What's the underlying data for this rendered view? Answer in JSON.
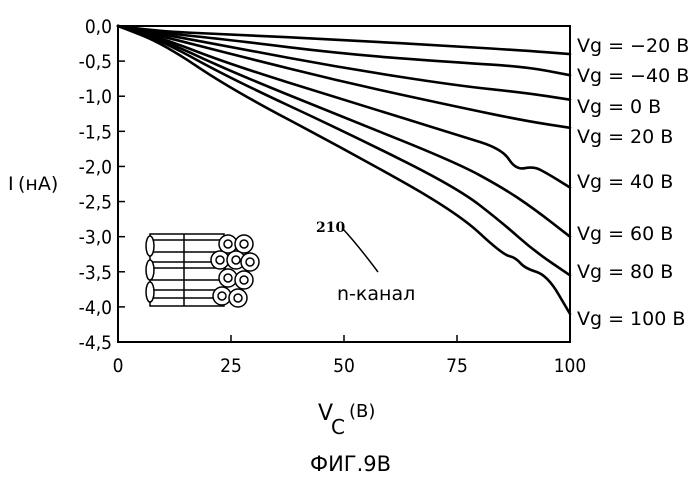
{
  "figure_caption": "ФИГ.9В",
  "reference_numeral": "210",
  "annotation": "n-канал",
  "chart_data": {
    "type": "line",
    "title": "",
    "xlabel_main": "V",
    "xlabel_sub": "C",
    "xlabel_unit": "(В)",
    "ylabel_main": "I",
    "ylabel_unit": "(нА)",
    "xlim": [
      0,
      100
    ],
    "ylim": [
      -4.5,
      0.0
    ],
    "x_ticks": [
      0,
      25,
      50,
      75,
      100
    ],
    "x_tick_labels": [
      "0",
      "25",
      "50",
      "75",
      "100"
    ],
    "y_ticks": [
      0.0,
      -0.5,
      -1.0,
      -1.5,
      -2.0,
      -2.5,
      -3.0,
      -3.5,
      -4.0,
      -4.5
    ],
    "y_tick_labels": [
      "0,0",
      "-0,5",
      "-1,0",
      "-1,5",
      "-2,0",
      "-2,5",
      "-3,0",
      "-3,5",
      "-4,0",
      "-4,5"
    ],
    "grid": false,
    "line_color": "#000000",
    "series": [
      {
        "name": "Vg = −20 В",
        "x": [
          0,
          10,
          25,
          50,
          75,
          90,
          100
        ],
        "y": [
          0,
          -0.08,
          -0.12,
          -0.2,
          -0.29,
          -0.35,
          -0.4
        ]
      },
      {
        "name": "Vg = −40 В",
        "x": [
          0,
          10,
          25,
          50,
          75,
          90,
          100
        ],
        "y": [
          0,
          -0.1,
          -0.2,
          -0.4,
          -0.52,
          -0.58,
          -0.7
        ]
      },
      {
        "name": "Vg = 0 В",
        "x": [
          0,
          10,
          25,
          50,
          75,
          90,
          100
        ],
        "y": [
          0,
          -0.12,
          -0.3,
          -0.6,
          -0.85,
          -0.95,
          -1.05
        ]
      },
      {
        "name": "Vg = 20 В",
        "x": [
          0,
          10,
          25,
          50,
          75,
          90,
          100
        ],
        "y": [
          0,
          -0.15,
          -0.4,
          -0.8,
          -1.15,
          -1.35,
          -1.45
        ]
      },
      {
        "name": "Vg = 40 В",
        "x": [
          0,
          10,
          25,
          50,
          75,
          85,
          88,
          92,
          95,
          100
        ],
        "y": [
          0,
          -0.18,
          -0.55,
          -1.05,
          -1.55,
          -1.75,
          -2.05,
          -2.0,
          -2.1,
          -2.3
        ]
      },
      {
        "name": "Vg = 60 В",
        "x": [
          0,
          10,
          25,
          50,
          75,
          85,
          92,
          100
        ],
        "y": [
          0,
          -0.2,
          -0.65,
          -1.3,
          -1.95,
          -2.3,
          -2.6,
          -3.0
        ]
      },
      {
        "name": "Vg = 80 В",
        "x": [
          0,
          10,
          25,
          50,
          75,
          85,
          92,
          100
        ],
        "y": [
          0,
          -0.22,
          -0.75,
          -1.5,
          -2.3,
          -2.8,
          -3.2,
          -3.55
        ]
      },
      {
        "name": "Vg = 100 В",
        "x": [
          0,
          10,
          25,
          50,
          75,
          85,
          88,
          90,
          95,
          100
        ],
        "y": [
          0,
          -0.25,
          -0.9,
          -1.75,
          -2.65,
          -3.25,
          -3.3,
          -3.45,
          -3.55,
          -4.1
        ]
      }
    ]
  }
}
